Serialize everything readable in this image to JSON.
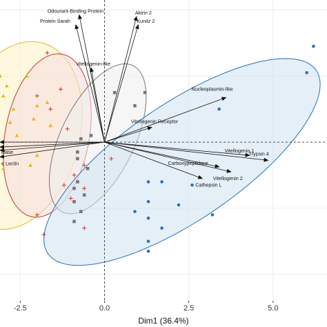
{
  "chart_data": {
    "type": "biplot",
    "xlabel": "Dim1 (36.4%)",
    "ylabel": "",
    "x_ticks": [
      {
        "value": -2.5,
        "label": "-2.5"
      },
      {
        "value": 0,
        "label": "0.0"
      },
      {
        "value": 2.5,
        "label": "2.5"
      },
      {
        "value": 5,
        "label": "5.0"
      }
    ],
    "xlim": [
      -3.1,
      6.6
    ],
    "ylim": [
      -4.8,
      4.3
    ],
    "grid": true,
    "reference_lines": {
      "x": 0,
      "y": 0
    },
    "groups": [
      {
        "color": "#e6b422",
        "fill": "#fff3c4",
        "marker": "triangle",
        "ellipse": {
          "cx": -2.6,
          "cy": 0.2,
          "rx": 2.9,
          "ry": 1.85,
          "angle": 75
        },
        "points": [
          [
            -3.1,
            2.0
          ],
          [
            -2.9,
            1.7
          ],
          [
            -3.0,
            1.4
          ],
          [
            -2.3,
            2.0
          ],
          [
            -2.0,
            1.1
          ],
          [
            -1.7,
            1.2
          ],
          [
            -2.1,
            0.7
          ],
          [
            -2.8,
            0.6
          ],
          [
            -2.6,
            0.2
          ],
          [
            -2.0,
            -0.4
          ],
          [
            -2.2,
            -0.7
          ],
          [
            -3.0,
            -0.8
          ],
          [
            -2.7,
            1.0
          ],
          [
            -1.6,
            0.5
          ]
        ]
      },
      {
        "color": "#c0392b",
        "fill": "#f6dcdc",
        "marker": "plus",
        "ellipse": {
          "cx": -1.7,
          "cy": 0.2,
          "rx": 2.5,
          "ry": 1.25,
          "angle": 80
        },
        "points": [
          [
            -1.7,
            2.7
          ],
          [
            -1.3,
            1.6
          ],
          [
            -2.0,
            1.4
          ],
          [
            -1.6,
            1.0
          ],
          [
            -1.1,
            0.4
          ],
          [
            -0.6,
            -0.7
          ],
          [
            -0.6,
            -1.4
          ],
          [
            -1.2,
            -1.3
          ],
          [
            -1.0,
            -1.7
          ],
          [
            -2.0,
            -2.2
          ],
          [
            -1.8,
            -2.8
          ],
          [
            -0.6,
            -2.6
          ],
          [
            -0.9,
            -1.0
          ],
          [
            0.2,
            -0.5
          ]
        ]
      },
      {
        "color": "#777777",
        "fill": "#eeeeee",
        "marker": "square",
        "ellipse": {
          "cx": -0.2,
          "cy": 0.1,
          "rx": 2.45,
          "ry": 1.1,
          "angle": 65
        },
        "points": [
          [
            1.2,
            1.5
          ],
          [
            0.9,
            1.1
          ],
          [
            0.3,
            1.5
          ],
          [
            -0.4,
            0.2
          ],
          [
            -0.7,
            0.1
          ],
          [
            -0.8,
            -0.3
          ],
          [
            -0.8,
            -0.5
          ],
          [
            -0.5,
            -0.8
          ],
          [
            -0.8,
            -1.2
          ],
          [
            -0.9,
            -1.4
          ],
          [
            -0.6,
            -1.6
          ],
          [
            -0.9,
            -1.8
          ],
          [
            -0.9,
            -2.4
          ],
          [
            -0.7,
            -2.1
          ]
        ]
      },
      {
        "color": "#2a6fb5",
        "fill": "#cfe2f3",
        "marker": "circle",
        "ellipse": {
          "cx": 2.3,
          "cy": -0.6,
          "rx": 4.85,
          "ry": 1.75,
          "angle": 35
        },
        "points": [
          [
            6.2,
            2.9
          ],
          [
            6.0,
            2.1
          ],
          [
            3.4,
            1.0
          ],
          [
            1.3,
            -1.2
          ],
          [
            1.7,
            -1.2
          ],
          [
            2.6,
            -1.3
          ],
          [
            1.3,
            -1.8
          ],
          [
            2.2,
            -1.9
          ],
          [
            0.9,
            -2.1
          ],
          [
            1.3,
            -2.3
          ],
          [
            1.7,
            -2.6
          ],
          [
            1.3,
            -3.0
          ],
          [
            1.3,
            -3.3
          ],
          [
            3.2,
            -2.2
          ]
        ]
      }
    ],
    "loadings": [
      {
        "label": "Odourant-Binding Protein",
        "x": -0.75,
        "y": 3.85,
        "label_dx": -46,
        "label_dy": -3
      },
      {
        "label": "Protein Sarah",
        "x": -0.85,
        "y": 3.55,
        "label_dx": -52,
        "label_dy": -3
      },
      {
        "label": "Akirin 2",
        "x": 0.95,
        "y": 3.8,
        "label_dx": -2,
        "label_dy": -3
      },
      {
        "label": "Kunitz 2",
        "x": 1.0,
        "y": 3.55,
        "label_dx": -2,
        "label_dy": -3
      },
      {
        "label": "Vitellogenin-like",
        "x": -0.4,
        "y": 2.25,
        "label_dx": -22,
        "label_dy": -3
      },
      {
        "label": "Nucleoplasmin-like",
        "x": 3.6,
        "y": 1.35,
        "label_dx": -50,
        "label_dy": -10
      },
      {
        "label": "Vitellogenin Receptor",
        "x": 1.4,
        "y": 0.45,
        "label_dx": -30,
        "label_dy": -6
      },
      {
        "label": "Vitellogenin 1",
        "x": 4.3,
        "y": -0.4,
        "label_dx": -36,
        "label_dy": -4
      },
      {
        "label": "Trypsin 4",
        "x": 4.85,
        "y": -0.55,
        "label_dx": -28,
        "label_dy": -7
      },
      {
        "label": "Carboxypeptidase",
        "x": 3.4,
        "y": -0.75,
        "label_dx": -74,
        "label_dy": -3
      },
      {
        "label": "Vitellogenin 2",
        "x": 3.75,
        "y": -0.9,
        "label_dx": -26,
        "label_dy": 12
      },
      {
        "label": "Cathepsin L",
        "x": 2.9,
        "y": -1.1,
        "label_dx": -10,
        "label_dy": 12
      },
      {
        "label": "idase",
        "x": -3.1,
        "y": -0.15,
        "label_dx": 2,
        "label_dy": 10
      },
      {
        "label": "e Lectin",
        "x": -3.1,
        "y": -0.45,
        "label_dx": 2,
        "label_dy": 12
      },
      {
        "label": "",
        "x": -3.1,
        "y": 0.0,
        "label_dx": 0,
        "label_dy": 0
      },
      {
        "label": "",
        "x": -3.1,
        "y": -0.25,
        "label_dx": 0,
        "label_dy": 0
      }
    ]
  }
}
